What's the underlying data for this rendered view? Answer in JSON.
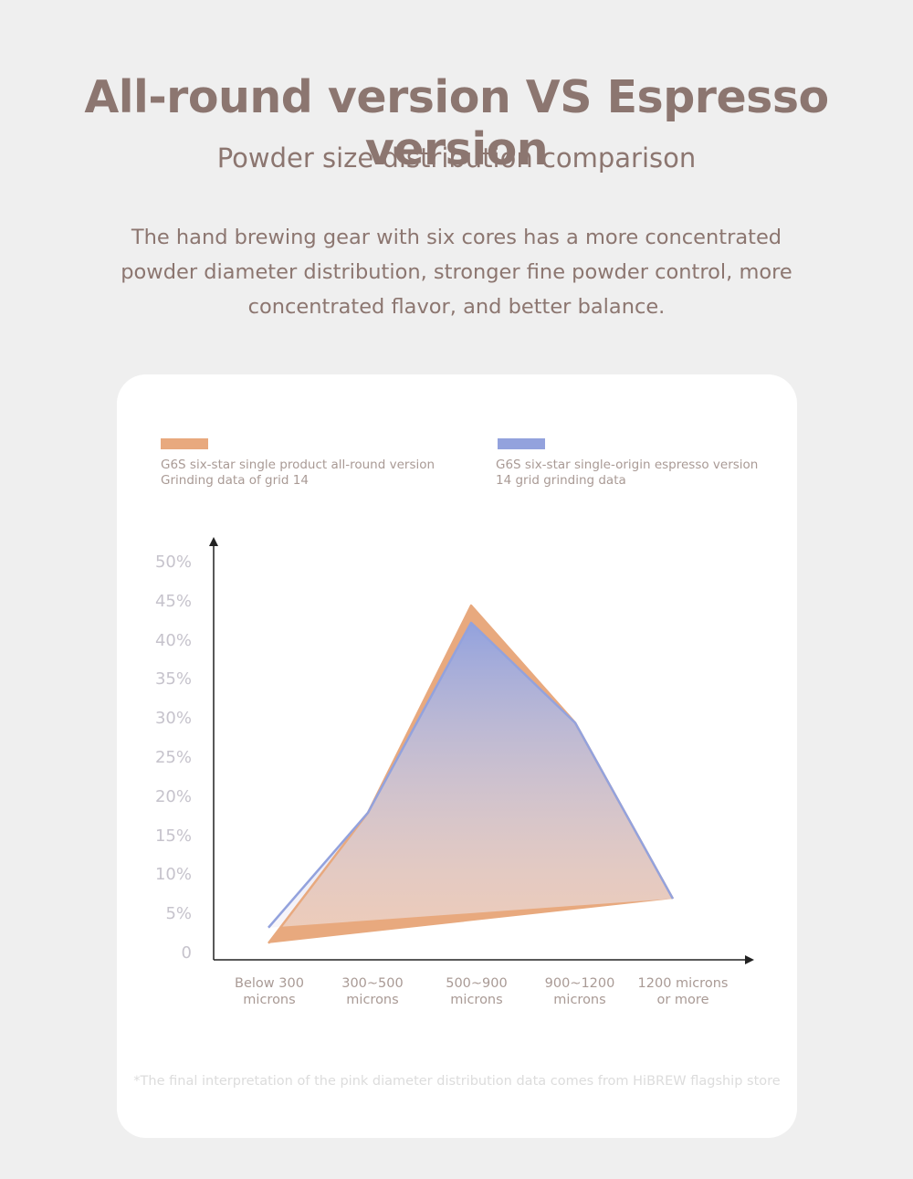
{
  "header": {
    "title": "All-round version VS Espresso version",
    "subtitle": "Powder size distribution comparison",
    "description": "The hand brewing gear with six cores has a more concentrated powder diameter distribution, stronger fine powder control, more concentrated flavor, and better balance."
  },
  "colors": {
    "all_round": "#e8a97e",
    "espresso": "#93a2dd",
    "background": "#efefef",
    "card": "#ffffff",
    "text": "#8c7670"
  },
  "chart_data": {
    "type": "area",
    "categories": [
      "Below 300 microns",
      "300~500 microns",
      "500~900 microns",
      "900~1200 microns",
      "1200 microns or more"
    ],
    "category_lines": [
      [
        "Below 300",
        "microns"
      ],
      [
        "300~500",
        "microns"
      ],
      [
        "500~900",
        "microns"
      ],
      [
        "900~1200",
        "microns"
      ],
      [
        "1200 microns",
        "or more"
      ]
    ],
    "yticks": [
      "50%",
      "45%",
      "40%",
      "35%",
      "30%",
      "25%",
      "20%",
      "15%",
      "10%",
      "5%",
      "0"
    ],
    "ylim": [
      0,
      50
    ],
    "series": [
      {
        "name_lines": [
          "G6S six-star single product all-round version",
          "Grinding data of grid 14"
        ],
        "color": "#e8a97e",
        "values": [
          1.3,
          18.0,
          44.5,
          29.5,
          7.0
        ]
      },
      {
        "name_lines": [
          "G6S six-star single-origin espresso version",
          "14 grid grinding data"
        ],
        "color": "#93a2dd",
        "values": [
          3.3,
          18.0,
          42.3,
          29.5,
          7.0
        ]
      }
    ],
    "legend_position": "top"
  },
  "footnote": "*The final interpretation of the pink diameter distribution data comes from HiBREW flagship store"
}
